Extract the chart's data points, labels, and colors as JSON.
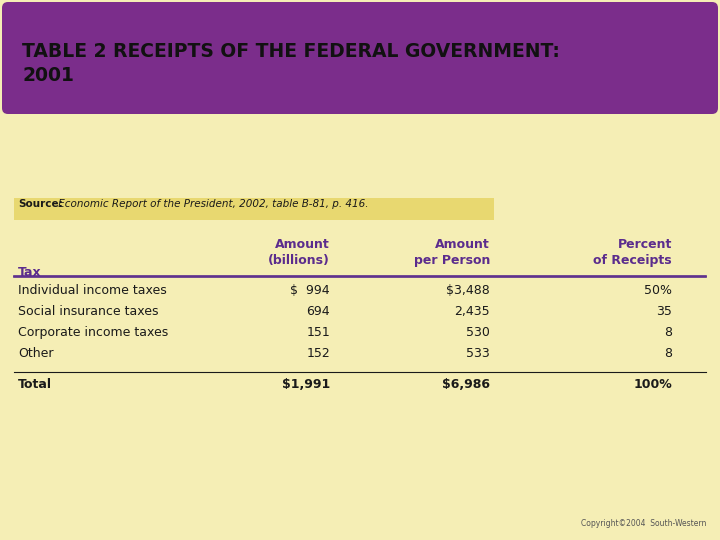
{
  "title": "TABLE 2 RECEIPTS OF THE FEDERAL GOVERNMENT:\n2001",
  "title_bg_color": "#7B2D8B",
  "title_text_color": "#111111",
  "bg_color": "#F5EEB5",
  "source_label": "Source:",
  "source_rest": " Economic Report of the President, 2002, table B-81, p. 416.",
  "source_box_color": "#E8D96A",
  "header_row": [
    "Tax",
    "Amount\n(billions)",
    "Amount\nper Person",
    "Percent\nof Receipts"
  ],
  "data_rows": [
    [
      "Individual income taxes",
      "$  994",
      "$3,488",
      "50%"
    ],
    [
      "Social insurance taxes",
      "694",
      "2,435",
      "35"
    ],
    [
      "Corporate income taxes",
      "151",
      "530",
      "8"
    ],
    [
      "Other",
      "152",
      "533",
      "8"
    ]
  ],
  "total_row": [
    "Total",
    "$1,991",
    "$6,986",
    "100%"
  ],
  "header_color": "#5B2C8D",
  "data_color": "#1A1A1A",
  "line_color": "#5B2C8D",
  "copyright": "Copyright©2004  South-Western",
  "figsize": [
    7.2,
    5.4
  ],
  "dpi": 100
}
